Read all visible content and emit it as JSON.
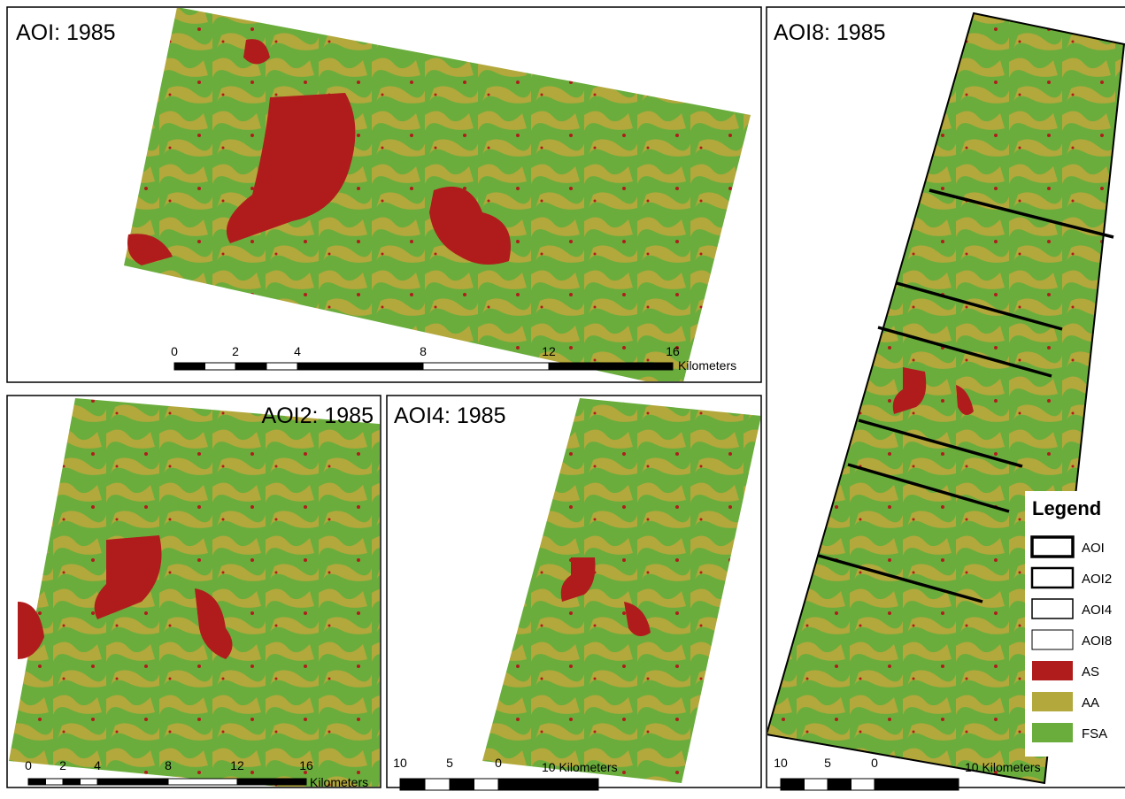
{
  "panels": [
    {
      "title": "AOI: 1985",
      "scale": {
        "ticks": [
          "0",
          "2",
          "4",
          "8",
          "12",
          "16"
        ],
        "unit": "Kilometers"
      }
    },
    {
      "title": "AOI2: 1985",
      "scale": {
        "ticks": [
          "0",
          "2",
          "4",
          "8",
          "12",
          "16"
        ],
        "unit": "Kilometers"
      }
    },
    {
      "title": "AOI4: 1985",
      "scale": {
        "ticks": [
          "10",
          "5",
          "0"
        ],
        "unit": "10 Kilometers"
      }
    },
    {
      "title": "AOI8: 1985",
      "scale": {
        "ticks": [
          "10",
          "5",
          "0"
        ],
        "unit": "10 Kilometers"
      }
    }
  ],
  "legend": {
    "title": "Legend",
    "items": [
      {
        "label": "AOI"
      },
      {
        "label": "AOI2"
      },
      {
        "label": "AOI4"
      },
      {
        "label": "AOI8"
      },
      {
        "label": "AS"
      },
      {
        "label": "AA"
      },
      {
        "label": "FSA"
      }
    ]
  }
}
